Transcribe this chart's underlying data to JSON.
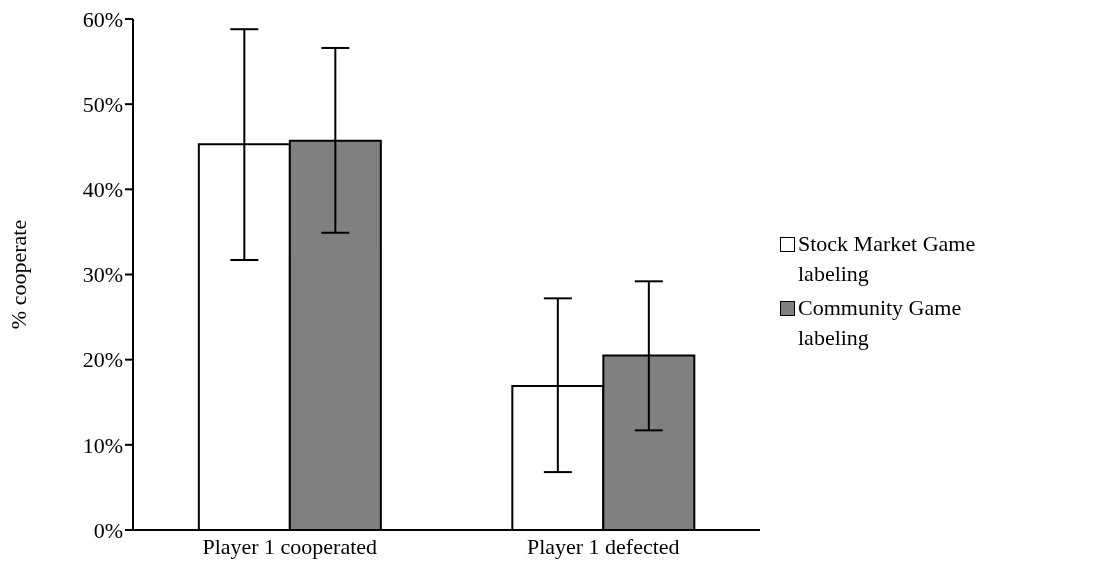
{
  "chart_data": {
    "type": "bar",
    "ylabel": "% cooperate",
    "categories": [
      "Player 1 cooperated",
      "Player 1 defected"
    ],
    "series": [
      {
        "name": "Stock Market Game labeling",
        "color": "#ffffff",
        "values": [
          45.3,
          16.9
        ],
        "errors": [
          [
            31.7,
            58.8
          ],
          [
            6.8,
            27.2
          ]
        ]
      },
      {
        "name": "Community Game labeling",
        "color": "#808080",
        "values": [
          45.7,
          20.5
        ],
        "errors": [
          [
            34.9,
            56.6
          ],
          [
            11.7,
            29.2
          ]
        ]
      }
    ],
    "ylim": [
      0,
      60
    ],
    "yticks": [
      {
        "value": 0,
        "label": "0%"
      },
      {
        "value": 10,
        "label": "10%"
      },
      {
        "value": 20,
        "label": "20%"
      },
      {
        "value": 30,
        "label": "30%"
      },
      {
        "value": 40,
        "label": "40%"
      },
      {
        "value": 50,
        "label": "50%"
      },
      {
        "value": 60,
        "label": "60%"
      }
    ],
    "grid": false,
    "legend": "right"
  }
}
